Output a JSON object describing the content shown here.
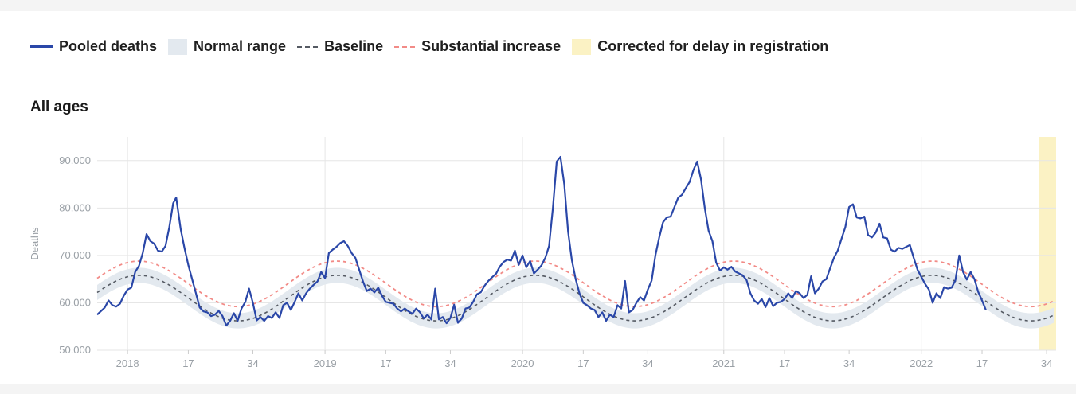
{
  "legend": {
    "pooled": "Pooled deaths",
    "normal": "Normal range",
    "baseline": "Baseline",
    "substantial": "Substantial increase",
    "corrected": "Corrected for delay in registration"
  },
  "colors": {
    "pooled": "#2a47a8",
    "normal": "#e3e9ef",
    "baseline": "#555a63",
    "substantial": "#f28b87",
    "corrected": "#fbf2c4"
  },
  "chart_data": {
    "type": "line",
    "title": "All ages",
    "ylabel": "Deaths",
    "ylim": [
      50000,
      95000
    ],
    "yticks": [
      50000,
      60000,
      70000,
      80000,
      90000
    ],
    "ytick_labels": [
      "50.000",
      "60.000",
      "70.000",
      "80.000",
      "90.000"
    ],
    "xlim": [
      -8,
      244.5
    ],
    "xticks": [
      {
        "pos": 0,
        "label": "2018"
      },
      {
        "pos": 16,
        "label": "17"
      },
      {
        "pos": 33,
        "label": "34"
      },
      {
        "pos": 52,
        "label": "2019"
      },
      {
        "pos": 68,
        "label": "17"
      },
      {
        "pos": 85,
        "label": "34"
      },
      {
        "pos": 104,
        "label": "2020"
      },
      {
        "pos": 120,
        "label": "17"
      },
      {
        "pos": 137,
        "label": "34"
      },
      {
        "pos": 157,
        "label": "2021"
      },
      {
        "pos": 173,
        "label": "17"
      },
      {
        "pos": 190,
        "label": "34"
      },
      {
        "pos": 209,
        "label": "2022"
      },
      {
        "pos": 225,
        "label": "17"
      },
      {
        "pos": 242,
        "label": "34"
      }
    ],
    "vgrid": [
      0,
      52,
      104,
      157,
      209
    ],
    "corrected_range": [
      240,
      245
    ],
    "baseline": {
      "mean": 61000,
      "amp": 4800,
      "phase": 3,
      "period": 52.2
    },
    "normal_band_halfwidth": 1600,
    "substantial_offset": 3000,
    "series": [
      {
        "name": "Pooled deaths",
        "points": [
          [
            -8,
            57500
          ],
          [
            -6,
            59000
          ],
          [
            -5,
            60500
          ],
          [
            -4,
            59500
          ],
          [
            -3,
            59200
          ],
          [
            -2,
            59800
          ],
          [
            -1,
            61500
          ],
          [
            0,
            62800
          ],
          [
            1,
            63200
          ],
          [
            2,
            66500
          ],
          [
            3,
            67800
          ],
          [
            4,
            70500
          ],
          [
            5,
            74500
          ],
          [
            6,
            73000
          ],
          [
            7,
            72500
          ],
          [
            8,
            71000
          ],
          [
            9,
            70800
          ],
          [
            10,
            72000
          ],
          [
            11,
            76000
          ],
          [
            12,
            81000
          ],
          [
            12.8,
            82200
          ],
          [
            14,
            75500
          ],
          [
            15,
            71500
          ],
          [
            16,
            68000
          ],
          [
            17,
            65000
          ],
          [
            18,
            62000
          ],
          [
            19,
            59000
          ],
          [
            20,
            58200
          ],
          [
            21,
            58000
          ],
          [
            22,
            57200
          ],
          [
            23,
            57500
          ],
          [
            24,
            58300
          ],
          [
            25,
            57200
          ],
          [
            26,
            55200
          ],
          [
            27,
            56200
          ],
          [
            28,
            57800
          ],
          [
            29,
            56200
          ],
          [
            30,
            58800
          ],
          [
            31,
            60200
          ],
          [
            32,
            63000
          ],
          [
            33,
            60000
          ],
          [
            34,
            56300
          ],
          [
            35,
            57000
          ],
          [
            36,
            56200
          ],
          [
            37,
            57200
          ],
          [
            38,
            56800
          ],
          [
            39,
            58000
          ],
          [
            40,
            56800
          ],
          [
            41,
            59500
          ],
          [
            42,
            60000
          ],
          [
            43,
            58500
          ],
          [
            44,
            60200
          ],
          [
            45,
            62000
          ],
          [
            46,
            60500
          ],
          [
            47,
            62000
          ],
          [
            48,
            63000
          ],
          [
            49,
            63800
          ],
          [
            50,
            64500
          ],
          [
            51,
            66500
          ],
          [
            52,
            65200
          ],
          [
            53,
            70500
          ],
          [
            54,
            71200
          ],
          [
            55,
            71800
          ],
          [
            56,
            72600
          ],
          [
            57,
            73000
          ],
          [
            58,
            72000
          ],
          [
            59,
            70500
          ],
          [
            60,
            69500
          ],
          [
            61,
            67000
          ],
          [
            62,
            64500
          ],
          [
            63,
            62500
          ],
          [
            64,
            63000
          ],
          [
            65,
            62200
          ],
          [
            66,
            63200
          ],
          [
            67,
            61500
          ],
          [
            68,
            60200
          ],
          [
            69,
            60000
          ],
          [
            70,
            59800
          ],
          [
            71,
            58800
          ],
          [
            72,
            58200
          ],
          [
            73,
            58800
          ],
          [
            74,
            58200
          ],
          [
            75,
            57700
          ],
          [
            76,
            58800
          ],
          [
            77,
            58000
          ],
          [
            78,
            56700
          ],
          [
            79,
            57500
          ],
          [
            80,
            56500
          ],
          [
            81,
            63000
          ],
          [
            82,
            56500
          ],
          [
            83,
            57000
          ],
          [
            84,
            55700
          ],
          [
            85,
            56800
          ],
          [
            86,
            59600
          ],
          [
            87,
            55800
          ],
          [
            88,
            56700
          ],
          [
            89,
            58800
          ],
          [
            90,
            59000
          ],
          [
            91,
            60200
          ],
          [
            92,
            61800
          ],
          [
            93,
            62200
          ],
          [
            94,
            63600
          ],
          [
            95,
            64600
          ],
          [
            96,
            65400
          ],
          [
            97,
            66100
          ],
          [
            98,
            67600
          ],
          [
            99,
            68600
          ],
          [
            100,
            69100
          ],
          [
            101,
            68900
          ],
          [
            102,
            71000
          ],
          [
            103,
            68000
          ],
          [
            104,
            70000
          ],
          [
            105,
            67500
          ],
          [
            106,
            68800
          ],
          [
            107,
            66200
          ],
          [
            108,
            67000
          ],
          [
            109,
            67900
          ],
          [
            110,
            69500
          ],
          [
            111,
            72000
          ],
          [
            112,
            80000
          ],
          [
            113,
            89800
          ],
          [
            114,
            90800
          ],
          [
            115,
            85000
          ],
          [
            116,
            75000
          ],
          [
            117,
            69000
          ],
          [
            118,
            65000
          ],
          [
            119,
            62000
          ],
          [
            120,
            60000
          ],
          [
            121,
            59500
          ],
          [
            122,
            58800
          ],
          [
            123,
            58500
          ],
          [
            124,
            57000
          ],
          [
            125,
            58000
          ],
          [
            126,
            56200
          ],
          [
            127,
            57500
          ],
          [
            128,
            57000
          ],
          [
            129,
            59500
          ],
          [
            130,
            58800
          ],
          [
            131,
            64600
          ],
          [
            132,
            58000
          ],
          [
            133,
            58500
          ],
          [
            134,
            60000
          ],
          [
            135,
            61200
          ],
          [
            136,
            60500
          ],
          [
            137,
            62800
          ],
          [
            138,
            64700
          ],
          [
            139,
            70000
          ],
          [
            140,
            73800
          ],
          [
            141,
            77000
          ],
          [
            142,
            78000
          ],
          [
            143,
            78200
          ],
          [
            144,
            80200
          ],
          [
            145,
            82200
          ],
          [
            146,
            82800
          ],
          [
            147,
            84200
          ],
          [
            148,
            85500
          ],
          [
            149,
            88000
          ],
          [
            150,
            89800
          ],
          [
            151,
            86000
          ],
          [
            152,
            80000
          ],
          [
            153,
            75200
          ],
          [
            154,
            73000
          ],
          [
            155,
            68500
          ],
          [
            156,
            66800
          ],
          [
            157,
            67500
          ],
          [
            158,
            67000
          ],
          [
            159,
            67600
          ],
          [
            160,
            66600
          ],
          [
            161,
            66200
          ],
          [
            162,
            65800
          ],
          [
            163,
            64800
          ],
          [
            164,
            62000
          ],
          [
            165,
            60500
          ],
          [
            166,
            59800
          ],
          [
            167,
            60800
          ],
          [
            168,
            59100
          ],
          [
            169,
            61000
          ],
          [
            170,
            59300
          ],
          [
            171,
            60000
          ],
          [
            172,
            60200
          ],
          [
            173,
            60800
          ],
          [
            174,
            62000
          ],
          [
            175,
            61000
          ],
          [
            176,
            62500
          ],
          [
            177,
            62000
          ],
          [
            178,
            61000
          ],
          [
            179,
            61700
          ],
          [
            180,
            65600
          ],
          [
            181,
            62000
          ],
          [
            182,
            63000
          ],
          [
            183,
            64500
          ],
          [
            184,
            65000
          ],
          [
            185,
            67300
          ],
          [
            186,
            69500
          ],
          [
            187,
            71000
          ],
          [
            188,
            73500
          ],
          [
            189,
            76000
          ],
          [
            190,
            80200
          ],
          [
            191,
            80800
          ],
          [
            192,
            78000
          ],
          [
            193,
            77800
          ],
          [
            194,
            78200
          ],
          [
            195,
            74300
          ],
          [
            196,
            73800
          ],
          [
            197,
            74800
          ],
          [
            198,
            76700
          ],
          [
            199,
            73800
          ],
          [
            200,
            73600
          ],
          [
            201,
            71200
          ],
          [
            202,
            70800
          ],
          [
            203,
            71600
          ],
          [
            204,
            71400
          ],
          [
            205,
            71800
          ],
          [
            206,
            72200
          ],
          [
            207,
            69500
          ],
          [
            208,
            67000
          ],
          [
            209,
            65500
          ],
          [
            210,
            64000
          ],
          [
            211,
            62800
          ],
          [
            212,
            60000
          ],
          [
            213,
            62000
          ],
          [
            214,
            61000
          ],
          [
            215,
            63300
          ],
          [
            216,
            63000
          ],
          [
            217,
            63200
          ],
          [
            218,
            64800
          ],
          [
            219,
            70000
          ],
          [
            220,
            66500
          ],
          [
            221,
            64900
          ],
          [
            222,
            66500
          ],
          [
            223,
            65000
          ],
          [
            224,
            62300
          ],
          [
            225,
            60500
          ],
          [
            226,
            58500
          ]
        ]
      }
    ]
  }
}
